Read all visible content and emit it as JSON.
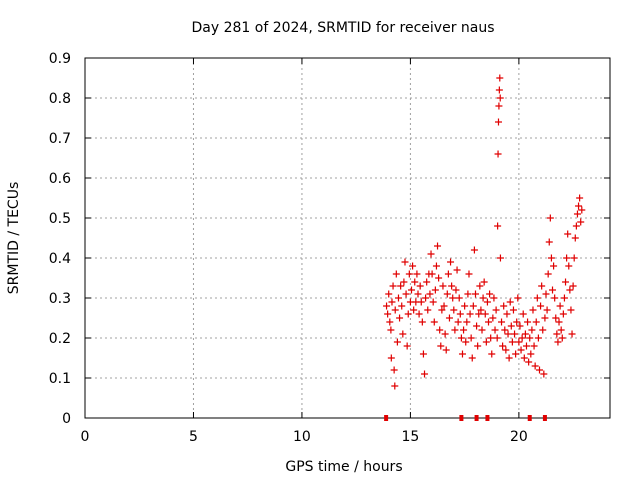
{
  "chart_data": {
    "type": "scatter",
    "title": "Day 281 of 2024, SRMTID for receiver naus",
    "xlabel": "GPS time / hours",
    "ylabel": "SRMTID / TECUs",
    "xlim": [
      0,
      24.2
    ],
    "ylim": [
      0,
      0.9
    ],
    "xticks": [
      0,
      5,
      10,
      15,
      20
    ],
    "yticks": [
      0,
      0.1,
      0.2,
      0.3,
      0.4,
      0.5,
      0.6,
      0.7,
      0.8,
      0.9
    ],
    "xtick_labels": [
      "0",
      "5",
      "10",
      "15",
      "20"
    ],
    "ytick_labels": [
      "0",
      "0.1",
      "0.2",
      "0.3",
      "0.4",
      "0.5",
      "0.6",
      "0.7",
      "0.8",
      "0.9"
    ],
    "grid": true,
    "marker": "+",
    "marker_color": "#e00000",
    "gap_color": "#e00000",
    "series": [
      {
        "name": "SRMTID",
        "points": [
          [
            13.9,
            0.28
          ],
          [
            13.95,
            0.26
          ],
          [
            14.0,
            0.31
          ],
          [
            14.05,
            0.24
          ],
          [
            14.1,
            0.22
          ],
          [
            14.12,
            0.15
          ],
          [
            14.15,
            0.29
          ],
          [
            14.2,
            0.33
          ],
          [
            14.25,
            0.12
          ],
          [
            14.28,
            0.08
          ],
          [
            14.3,
            0.27
          ],
          [
            14.35,
            0.36
          ],
          [
            14.4,
            0.19
          ],
          [
            14.45,
            0.3
          ],
          [
            14.5,
            0.25
          ],
          [
            14.55,
            0.33
          ],
          [
            14.6,
            0.28
          ],
          [
            14.65,
            0.21
          ],
          [
            14.7,
            0.34
          ],
          [
            14.75,
            0.39
          ],
          [
            14.8,
            0.31
          ],
          [
            14.85,
            0.18
          ],
          [
            14.9,
            0.26
          ],
          [
            14.95,
            0.36
          ],
          [
            15.0,
            0.29
          ],
          [
            15.05,
            0.32
          ],
          [
            15.1,
            0.38
          ],
          [
            15.15,
            0.27
          ],
          [
            15.2,
            0.34
          ],
          [
            15.25,
            0.29
          ],
          [
            15.3,
            0.36
          ],
          [
            15.35,
            0.31
          ],
          [
            15.4,
            0.26
          ],
          [
            15.45,
            0.33
          ],
          [
            15.5,
            0.29
          ],
          [
            15.55,
            0.24
          ],
          [
            15.6,
            0.16
          ],
          [
            15.65,
            0.11
          ],
          [
            15.7,
            0.3
          ],
          [
            15.75,
            0.34
          ],
          [
            15.8,
            0.27
          ],
          [
            15.85,
            0.36
          ],
          [
            15.9,
            0.31
          ],
          [
            15.95,
            0.41
          ],
          [
            16.0,
            0.36
          ],
          [
            16.05,
            0.29
          ],
          [
            16.1,
            0.24
          ],
          [
            16.15,
            0.32
          ],
          [
            16.2,
            0.38
          ],
          [
            16.25,
            0.43
          ],
          [
            16.3,
            0.35
          ],
          [
            16.35,
            0.22
          ],
          [
            16.4,
            0.18
          ],
          [
            16.45,
            0.27
          ],
          [
            16.5,
            0.33
          ],
          [
            16.55,
            0.28
          ],
          [
            16.6,
            0.21
          ],
          [
            16.65,
            0.17
          ],
          [
            16.7,
            0.31
          ],
          [
            16.75,
            0.36
          ],
          [
            16.8,
            0.25
          ],
          [
            16.85,
            0.39
          ],
          [
            16.9,
            0.33
          ],
          [
            16.95,
            0.3
          ],
          [
            17.0,
            0.27
          ],
          [
            17.05,
            0.22
          ],
          [
            17.1,
            0.32
          ],
          [
            17.15,
            0.37
          ],
          [
            17.2,
            0.24
          ],
          [
            17.25,
            0.3
          ],
          [
            17.3,
            0.26
          ],
          [
            17.35,
            0.2
          ],
          [
            17.4,
            0.16
          ],
          [
            17.45,
            0.22
          ],
          [
            17.5,
            0.28
          ],
          [
            17.55,
            0.19
          ],
          [
            17.6,
            0.24
          ],
          [
            17.65,
            0.31
          ],
          [
            17.7,
            0.36
          ],
          [
            17.75,
            0.26
          ],
          [
            17.8,
            0.2
          ],
          [
            17.85,
            0.15
          ],
          [
            17.9,
            0.28
          ],
          [
            17.95,
            0.42
          ],
          [
            18.0,
            0.31
          ],
          [
            18.05,
            0.23
          ],
          [
            18.1,
            0.18
          ],
          [
            18.15,
            0.26
          ],
          [
            18.2,
            0.33
          ],
          [
            18.25,
            0.27
          ],
          [
            18.3,
            0.22
          ],
          [
            18.35,
            0.3
          ],
          [
            18.4,
            0.34
          ],
          [
            18.45,
            0.26
          ],
          [
            18.5,
            0.19
          ],
          [
            18.55,
            0.29
          ],
          [
            18.6,
            0.24
          ],
          [
            18.65,
            0.31
          ],
          [
            18.7,
            0.2
          ],
          [
            18.75,
            0.16
          ],
          [
            18.8,
            0.25
          ],
          [
            18.85,
            0.3
          ],
          [
            18.9,
            0.22
          ],
          [
            18.95,
            0.27
          ],
          [
            19.0,
            0.2
          ],
          [
            19.02,
            0.48
          ],
          [
            19.04,
            0.66
          ],
          [
            19.06,
            0.74
          ],
          [
            19.08,
            0.78
          ],
          [
            19.1,
            0.82
          ],
          [
            19.12,
            0.85
          ],
          [
            19.14,
            0.8
          ],
          [
            19.15,
            0.4
          ],
          [
            19.2,
            0.24
          ],
          [
            19.25,
            0.18
          ],
          [
            19.3,
            0.28
          ],
          [
            19.35,
            0.22
          ],
          [
            19.4,
            0.17
          ],
          [
            19.45,
            0.26
          ],
          [
            19.5,
            0.21
          ],
          [
            19.55,
            0.15
          ],
          [
            19.6,
            0.29
          ],
          [
            19.65,
            0.23
          ],
          [
            19.7,
            0.19
          ],
          [
            19.75,
            0.27
          ],
          [
            19.8,
            0.21
          ],
          [
            19.85,
            0.16
          ],
          [
            19.9,
            0.24
          ],
          [
            19.95,
            0.3
          ],
          [
            20.0,
            0.19
          ],
          [
            20.05,
            0.23
          ],
          [
            20.1,
            0.17
          ],
          [
            20.15,
            0.2
          ],
          [
            20.2,
            0.26
          ],
          [
            20.25,
            0.15
          ],
          [
            20.3,
            0.21
          ],
          [
            20.35,
            0.18
          ],
          [
            20.4,
            0.24
          ],
          [
            20.45,
            0.14
          ],
          [
            20.5,
            0.2
          ],
          [
            20.55,
            0.16
          ],
          [
            20.6,
            0.22
          ],
          [
            20.65,
            0.27
          ],
          [
            20.7,
            0.18
          ],
          [
            20.75,
            0.13
          ],
          [
            20.8,
            0.24
          ],
          [
            20.85,
            0.3
          ],
          [
            20.9,
            0.2
          ],
          [
            20.95,
            0.12
          ],
          [
            21.0,
            0.28
          ],
          [
            21.05,
            0.33
          ],
          [
            21.1,
            0.22
          ],
          [
            21.15,
            0.11
          ],
          [
            21.2,
            0.25
          ],
          [
            21.25,
            0.31
          ],
          [
            21.3,
            0.27
          ],
          [
            21.35,
            0.36
          ],
          [
            21.4,
            0.44
          ],
          [
            21.45,
            0.5
          ],
          [
            21.5,
            0.4
          ],
          [
            21.55,
            0.32
          ],
          [
            21.6,
            0.38
          ],
          [
            21.65,
            0.3
          ],
          [
            21.7,
            0.25
          ],
          [
            21.75,
            0.21
          ],
          [
            21.8,
            0.19
          ],
          [
            21.85,
            0.24
          ],
          [
            21.9,
            0.28
          ],
          [
            21.95,
            0.22
          ],
          [
            22.0,
            0.2
          ],
          [
            22.05,
            0.26
          ],
          [
            22.1,
            0.3
          ],
          [
            22.15,
            0.34
          ],
          [
            22.2,
            0.4
          ],
          [
            22.25,
            0.46
          ],
          [
            22.3,
            0.38
          ],
          [
            22.35,
            0.32
          ],
          [
            22.4,
            0.27
          ],
          [
            22.45,
            0.21
          ],
          [
            22.5,
            0.33
          ],
          [
            22.55,
            0.4
          ],
          [
            22.6,
            0.45
          ],
          [
            22.65,
            0.48
          ],
          [
            22.7,
            0.51
          ],
          [
            22.75,
            0.53
          ],
          [
            22.8,
            0.55
          ],
          [
            22.85,
            0.49
          ],
          [
            22.9,
            0.52
          ]
        ]
      }
    ],
    "gaps_at_zero": [
      13.88,
      17.35,
      18.05,
      18.55,
      20.5,
      21.2
    ]
  }
}
